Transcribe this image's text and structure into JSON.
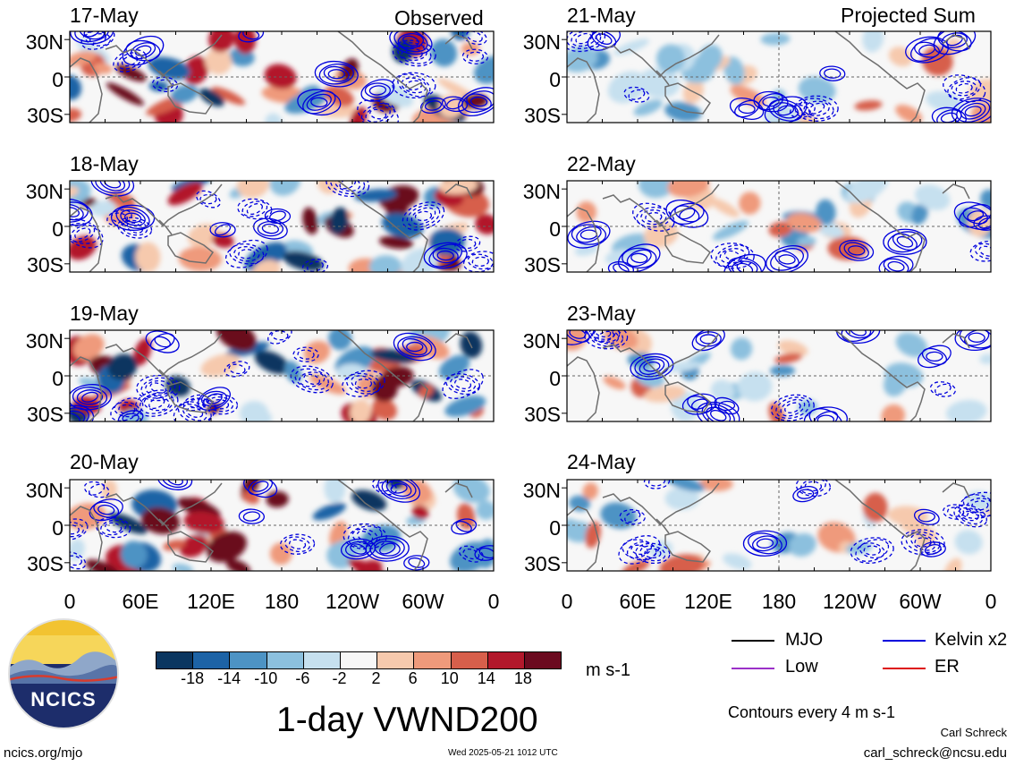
{
  "observed_label": "Observed",
  "projected_label": "Projected Sum",
  "left_panels": [
    {
      "date": "17-May"
    },
    {
      "date": "18-May"
    },
    {
      "date": "19-May"
    },
    {
      "date": "20-May"
    }
  ],
  "right_panels": [
    {
      "date": "21-May"
    },
    {
      "date": "22-May"
    },
    {
      "date": "23-May"
    },
    {
      "date": "24-May"
    }
  ],
  "lat_labels": [
    "30N",
    "0",
    "30S"
  ],
  "lon_labels": [
    "0",
    "60E",
    "120E",
    "180",
    "120W",
    "60W",
    "0"
  ],
  "colorbar": {
    "ticks": [
      "-18",
      "-14",
      "-10",
      "-6",
      "-2",
      "2",
      "6",
      "10",
      "14",
      "18"
    ],
    "colors": [
      "#0b3660",
      "#1d63a6",
      "#4d93c4",
      "#8cc0de",
      "#c6e0ef",
      "#f7f7f7",
      "#f6c9ad",
      "#ef9a7b",
      "#d75f4b",
      "#b2182b",
      "#6b0a1f"
    ],
    "units": "m s-1"
  },
  "legend": [
    {
      "name": "MJO",
      "color": "#000000"
    },
    {
      "name": "Kelvin x2",
      "color": "#0000dd"
    },
    {
      "name": "Low",
      "color": "#9b30c8"
    },
    {
      "name": "ER",
      "color": "#dd1111"
    }
  ],
  "contour_note": "Contours every 4 m s-1",
  "main_title": "1-day VWND200",
  "logo_text": "NCICS",
  "url": "ncics.org/mjo",
  "timestamp": "Wed 2025-05-21 1012 UTC",
  "author": "Carl Schreck",
  "email": "carl_schreck@ncsu.edu"
}
